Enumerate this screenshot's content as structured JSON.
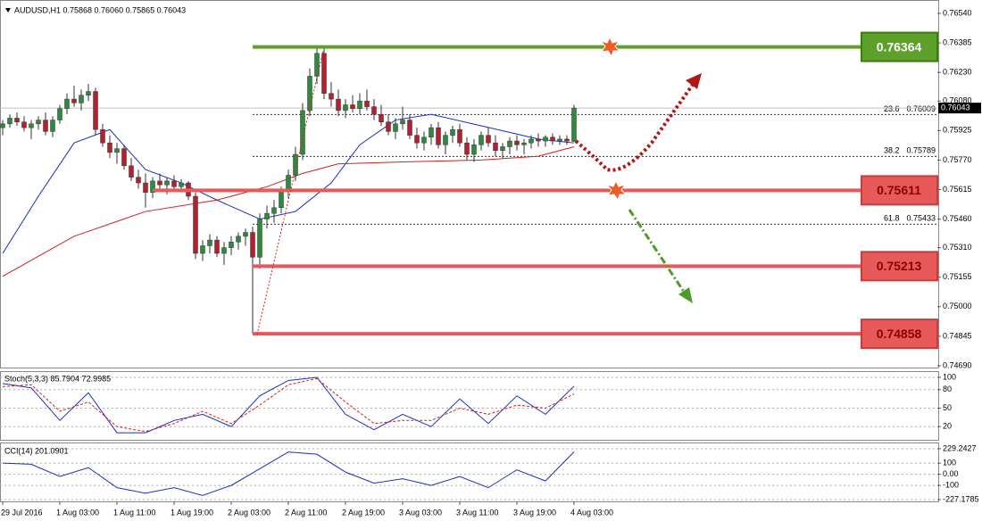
{
  "chart_data": [
    {
      "type": "candlestick",
      "title": "AUDUSD,H1  0.75868 0.76060 0.75865 0.76043",
      "up_color": "#2e8b3e",
      "down_color": "#b5202e",
      "wick_color": "#333333",
      "xlim": [
        -0.375,
        130.875
      ],
      "xticks": [
        {
          "value": 0,
          "label": "29 Jul 2016"
        },
        {
          "value": 8,
          "label": "1 Aug 03:00"
        },
        {
          "value": 16,
          "label": "1 Aug 11:00"
        },
        {
          "value": 24,
          "label": "1 Aug 19:00"
        },
        {
          "value": 32,
          "label": "2 Aug 03:00"
        },
        {
          "value": 40,
          "label": "2 Aug 11:00"
        },
        {
          "value": 48,
          "label": "2 Aug 19:00"
        },
        {
          "value": 56,
          "label": "3 Aug 03:00"
        },
        {
          "value": 64,
          "label": "3 Aug 11:00"
        },
        {
          "value": 72,
          "label": "3 Aug 19:00"
        },
        {
          "value": 80,
          "label": "4 Aug 03:00"
        }
      ],
      "ylim": [
        0.7469,
        0.7654
      ],
      "yticks": [
        {
          "value": 0.7654,
          "label": "0.76540"
        },
        0.76385,
        {
          "value": 0.7623,
          "label": "0.76230"
        },
        {
          "value": 0.7608,
          "label": "0.76080"
        },
        0.75925,
        {
          "value": 0.7577,
          "label": "0.75770"
        },
        0.75615,
        {
          "value": 0.7546,
          "label": "0.75460"
        },
        {
          "value": 0.7531,
          "label": "0.75310"
        },
        0.75155,
        {
          "value": 0.75,
          "label": "0.75000"
        },
        0.74845,
        {
          "value": 0.7469,
          "label": "0.74690"
        }
      ],
      "last_price": 0.76043,
      "ohlc": [
        [
          0.7594,
          0.7598,
          0.759,
          0.7596
        ],
        [
          0.7596,
          0.7601,
          0.7594,
          0.7599
        ],
        [
          0.7599,
          0.7602,
          0.7595,
          0.7597
        ],
        [
          0.7597,
          0.76,
          0.7592,
          0.7594
        ],
        [
          0.7594,
          0.7598,
          0.7588,
          0.7596
        ],
        [
          0.7596,
          0.76,
          0.7593,
          0.7598
        ],
        [
          0.7598,
          0.7602,
          0.759,
          0.7592
        ],
        [
          0.7592,
          0.76,
          0.7589,
          0.7598
        ],
        [
          0.7598,
          0.7606,
          0.7596,
          0.7604
        ],
        [
          0.7604,
          0.7612,
          0.7601,
          0.7609
        ],
        [
          0.7609,
          0.7616,
          0.7605,
          0.7607
        ],
        [
          0.7607,
          0.7614,
          0.7603,
          0.7611
        ],
        [
          0.7611,
          0.7617,
          0.7608,
          0.7613
        ],
        [
          0.7613,
          0.7615,
          0.759,
          0.7593
        ],
        [
          0.7593,
          0.7596,
          0.7584,
          0.7586
        ],
        [
          0.7586,
          0.759,
          0.7578,
          0.7581
        ],
        [
          0.7581,
          0.7586,
          0.7575,
          0.7583
        ],
        [
          0.7583,
          0.7585,
          0.7572,
          0.7574
        ],
        [
          0.7574,
          0.7578,
          0.7566,
          0.7568
        ],
        [
          0.7568,
          0.7572,
          0.7562,
          0.7565
        ],
        [
          0.7565,
          0.757,
          0.7552,
          0.756
        ],
        [
          0.756,
          0.7568,
          0.7557,
          0.7566
        ],
        [
          0.7566,
          0.757,
          0.7562,
          0.7564
        ],
        [
          0.7564,
          0.7568,
          0.7559,
          0.7566
        ],
        [
          0.7566,
          0.7569,
          0.7561,
          0.7563
        ],
        [
          0.7563,
          0.7567,
          0.756,
          0.7565
        ],
        [
          0.7565,
          0.7566,
          0.7556,
          0.7558
        ],
        [
          0.7558,
          0.756,
          0.7525,
          0.7528
        ],
        [
          0.7528,
          0.7535,
          0.7524,
          0.7532
        ],
        [
          0.7532,
          0.7538,
          0.7528,
          0.7535
        ],
        [
          0.7535,
          0.7537,
          0.7526,
          0.7528
        ],
        [
          0.7528,
          0.7534,
          0.7522,
          0.7531
        ],
        [
          0.7531,
          0.7537,
          0.7527,
          0.7534
        ],
        [
          0.7534,
          0.7539,
          0.753,
          0.7537
        ],
        [
          0.7537,
          0.7541,
          0.7532,
          0.7539
        ],
        [
          0.7539,
          0.7542,
          0.7486,
          0.7526
        ],
        [
          0.7526,
          0.7549,
          0.752,
          0.7546
        ],
        [
          0.7546,
          0.7553,
          0.7541,
          0.7549
        ],
        [
          0.7549,
          0.7556,
          0.7544,
          0.7552
        ],
        [
          0.7552,
          0.7563,
          0.7549,
          0.7561
        ],
        [
          0.7561,
          0.7572,
          0.7557,
          0.7569
        ],
        [
          0.7569,
          0.7584,
          0.7566,
          0.758
        ],
        [
          0.758,
          0.7607,
          0.7577,
          0.7603
        ],
        [
          0.7603,
          0.7625,
          0.76,
          0.7621
        ],
        [
          0.7621,
          0.7637,
          0.7617,
          0.7633
        ],
        [
          0.7633,
          0.7636,
          0.7609,
          0.7612
        ],
        [
          0.7612,
          0.7618,
          0.7605,
          0.7609
        ],
        [
          0.7609,
          0.7614,
          0.76,
          0.7603
        ],
        [
          0.7603,
          0.7609,
          0.7599,
          0.7606
        ],
        [
          0.7606,
          0.7611,
          0.7602,
          0.7604
        ],
        [
          0.7604,
          0.7612,
          0.7601,
          0.7608
        ],
        [
          0.7608,
          0.7614,
          0.7603,
          0.7605
        ],
        [
          0.7605,
          0.7609,
          0.7598,
          0.7601
        ],
        [
          0.7601,
          0.7606,
          0.7595,
          0.7597
        ],
        [
          0.7597,
          0.7601,
          0.759,
          0.7592
        ],
        [
          0.7592,
          0.7599,
          0.7588,
          0.7596
        ],
        [
          0.7596,
          0.7605,
          0.7593,
          0.7598
        ],
        [
          0.7598,
          0.7601,
          0.7588,
          0.759
        ],
        [
          0.759,
          0.7594,
          0.7583,
          0.7586
        ],
        [
          0.7586,
          0.7592,
          0.7582,
          0.7589
        ],
        [
          0.7589,
          0.7596,
          0.7585,
          0.7594
        ],
        [
          0.7594,
          0.7597,
          0.7583,
          0.7585
        ],
        [
          0.7585,
          0.7592,
          0.758,
          0.759
        ],
        [
          0.759,
          0.7595,
          0.7586,
          0.7593
        ],
        [
          0.7593,
          0.7596,
          0.7584,
          0.7586
        ],
        [
          0.7586,
          0.7589,
          0.7577,
          0.758
        ],
        [
          0.758,
          0.7588,
          0.7576,
          0.7585
        ],
        [
          0.7585,
          0.7592,
          0.7582,
          0.759
        ],
        [
          0.759,
          0.7594,
          0.7584,
          0.7586
        ],
        [
          0.7586,
          0.759,
          0.7579,
          0.7582
        ],
        [
          0.7582,
          0.7586,
          0.7578,
          0.7584
        ],
        [
          0.7584,
          0.7589,
          0.758,
          0.7587
        ],
        [
          0.7587,
          0.759,
          0.7582,
          0.7585
        ],
        [
          0.7585,
          0.7588,
          0.758,
          0.7586
        ],
        [
          0.7586,
          0.759,
          0.7583,
          0.7588
        ],
        [
          0.7588,
          0.7591,
          0.7584,
          0.7587
        ],
        [
          0.7587,
          0.759,
          0.7584,
          0.7589
        ],
        [
          0.7589,
          0.7591,
          0.7585,
          0.7587
        ],
        [
          0.7587,
          0.759,
          0.7585,
          0.7588
        ],
        [
          0.7588,
          0.759,
          0.7585,
          0.7587
        ],
        [
          0.75868,
          0.7606,
          0.75865,
          0.76043
        ]
      ],
      "overlays": [
        {
          "color": "#1a2fbf",
          "x": [
            0,
            5,
            10,
            15,
            20,
            25,
            30,
            36,
            41,
            46,
            50,
            55,
            60,
            67,
            75,
            80
          ],
          "values": [
            0.7528,
            0.7558,
            0.7586,
            0.7593,
            0.7572,
            0.7565,
            0.7556,
            0.7546,
            0.755,
            0.7565,
            0.7585,
            0.7598,
            0.7601,
            0.7595,
            0.7588,
            0.7586
          ]
        },
        {
          "color": "#d21f1f",
          "x": [
            0,
            10,
            20,
            30,
            37,
            42,
            47,
            56,
            67,
            75,
            80
          ],
          "values": [
            0.7516,
            0.7537,
            0.755,
            0.7556,
            0.7563,
            0.757,
            0.7575,
            0.7576,
            0.7577,
            0.7579,
            0.7584
          ]
        }
      ],
      "levels": [
        {
          "value": 0.76364,
          "color": "#5ea12a"
        },
        {
          "value": 0.75611,
          "color": "#e85a5a"
        },
        {
          "value": 0.75213,
          "color": "#e85a5a"
        },
        {
          "value": 0.74858,
          "color": "#e85a5a"
        }
      ],
      "fib_levels": [
        {
          "ratio": 23.6,
          "value": 0.76009
        },
        {
          "ratio": 38.2,
          "value": 0.75789
        },
        {
          "ratio": 61.8,
          "value": 0.75433
        }
      ]
    },
    {
      "type": "line",
      "title": "Stoch(5,3,3) 85.7904 72.9985",
      "ylim": [
        0,
        100
      ],
      "yticks": [
        100,
        80,
        50,
        20
      ],
      "x": [
        0,
        4,
        8,
        12,
        16,
        20,
        24,
        28,
        32,
        36,
        40,
        44,
        48,
        52,
        56,
        60,
        64,
        68,
        72,
        76,
        80
      ],
      "series": [
        {
          "color": "#1a2fbf",
          "values": [
            90,
            83,
            30,
            75,
            10,
            10,
            30,
            40,
            20,
            70,
            95,
            100,
            40,
            15,
            40,
            20,
            65,
            25,
            70,
            40,
            85.7904
          ]
        },
        {
          "color": "#d21f1f",
          "dashed": true,
          "values": [
            85,
            88,
            45,
            60,
            20,
            12,
            25,
            45,
            25,
            55,
            88,
            98,
            60,
            25,
            30,
            30,
            50,
            40,
            55,
            50,
            72.9985
          ]
        }
      ]
    },
    {
      "type": "line",
      "title": "CCI(14) 201.0901",
      "ylim": [
        -227.1785,
        229.2427
      ],
      "yticks": [
        229.2427,
        100,
        {
          "value": 0,
          "label": "0.00"
        },
        -100,
        -227.1785
      ],
      "x": [
        0,
        4,
        8,
        12,
        16,
        20,
        24,
        28,
        32,
        36,
        40,
        44,
        48,
        52,
        56,
        60,
        64,
        68,
        72,
        76,
        80
      ],
      "series": [
        {
          "color": "#1a2fbf",
          "values": [
            100,
            90,
            -20,
            60,
            -120,
            -170,
            -120,
            -190,
            -100,
            50,
            200,
            180,
            20,
            -80,
            -40,
            -100,
            -20,
            -120,
            40,
            -60,
            201.0901
          ]
        }
      ]
    }
  ]
}
